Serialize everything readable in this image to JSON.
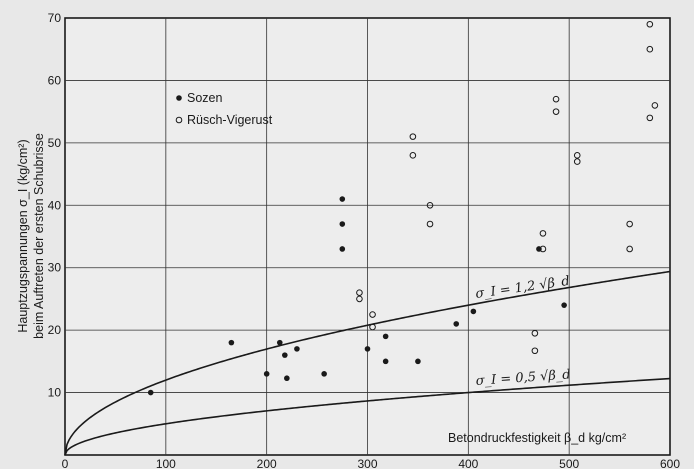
{
  "chart_data": {
    "type": "scatter",
    "xlabel": "Betondruckfestigkeit β_d  kg/cm²",
    "ylabel_line1": "Hauptzugspannungen σ_I (kg/cm²)",
    "ylabel_line2": "beim Auftreten der ersten Schubrisse",
    "xlim": [
      0,
      600
    ],
    "ylim": [
      0,
      70
    ],
    "x_ticks": [
      0,
      100,
      200,
      300,
      400,
      500,
      600
    ],
    "y_ticks": [
      10,
      20,
      30,
      40,
      50,
      60,
      70
    ],
    "grid": true,
    "legend_position": "top-left",
    "series": [
      {
        "name": "Sozen",
        "marker": "filled-circle",
        "points": [
          [
            85,
            10
          ],
          [
            165,
            18
          ],
          [
            200,
            13
          ],
          [
            213,
            18
          ],
          [
            218,
            16
          ],
          [
            220,
            12.3
          ],
          [
            230,
            17
          ],
          [
            257,
            13
          ],
          [
            275,
            41
          ],
          [
            275,
            37
          ],
          [
            275,
            33
          ],
          [
            300,
            17
          ],
          [
            318,
            19
          ],
          [
            318,
            15
          ],
          [
            350,
            15
          ],
          [
            388,
            21
          ],
          [
            405,
            23
          ],
          [
            470,
            33
          ],
          [
            495,
            24
          ]
        ]
      },
      {
        "name": "Rüsch-Vigerust",
        "marker": "open-circle",
        "points": [
          [
            292,
            26
          ],
          [
            292,
            25
          ],
          [
            305,
            22.5
          ],
          [
            305,
            20.5
          ],
          [
            345,
            51
          ],
          [
            345,
            48
          ],
          [
            362,
            40
          ],
          [
            362,
            37
          ],
          [
            466,
            19.5
          ],
          [
            466,
            16.7
          ],
          [
            474,
            35.5
          ],
          [
            474,
            33
          ],
          [
            487,
            57
          ],
          [
            487,
            55
          ],
          [
            508,
            48
          ],
          [
            508,
            47
          ],
          [
            560,
            37
          ],
          [
            560,
            33
          ],
          [
            580,
            69
          ],
          [
            580,
            65
          ],
          [
            580,
            54
          ],
          [
            585,
            56
          ]
        ]
      }
    ],
    "curves": [
      {
        "coef": 1.2,
        "label": "σ_I = 1,2 √β_d"
      },
      {
        "coef": 0.5,
        "label": "σ_I = 0,5 √β_d"
      }
    ]
  }
}
